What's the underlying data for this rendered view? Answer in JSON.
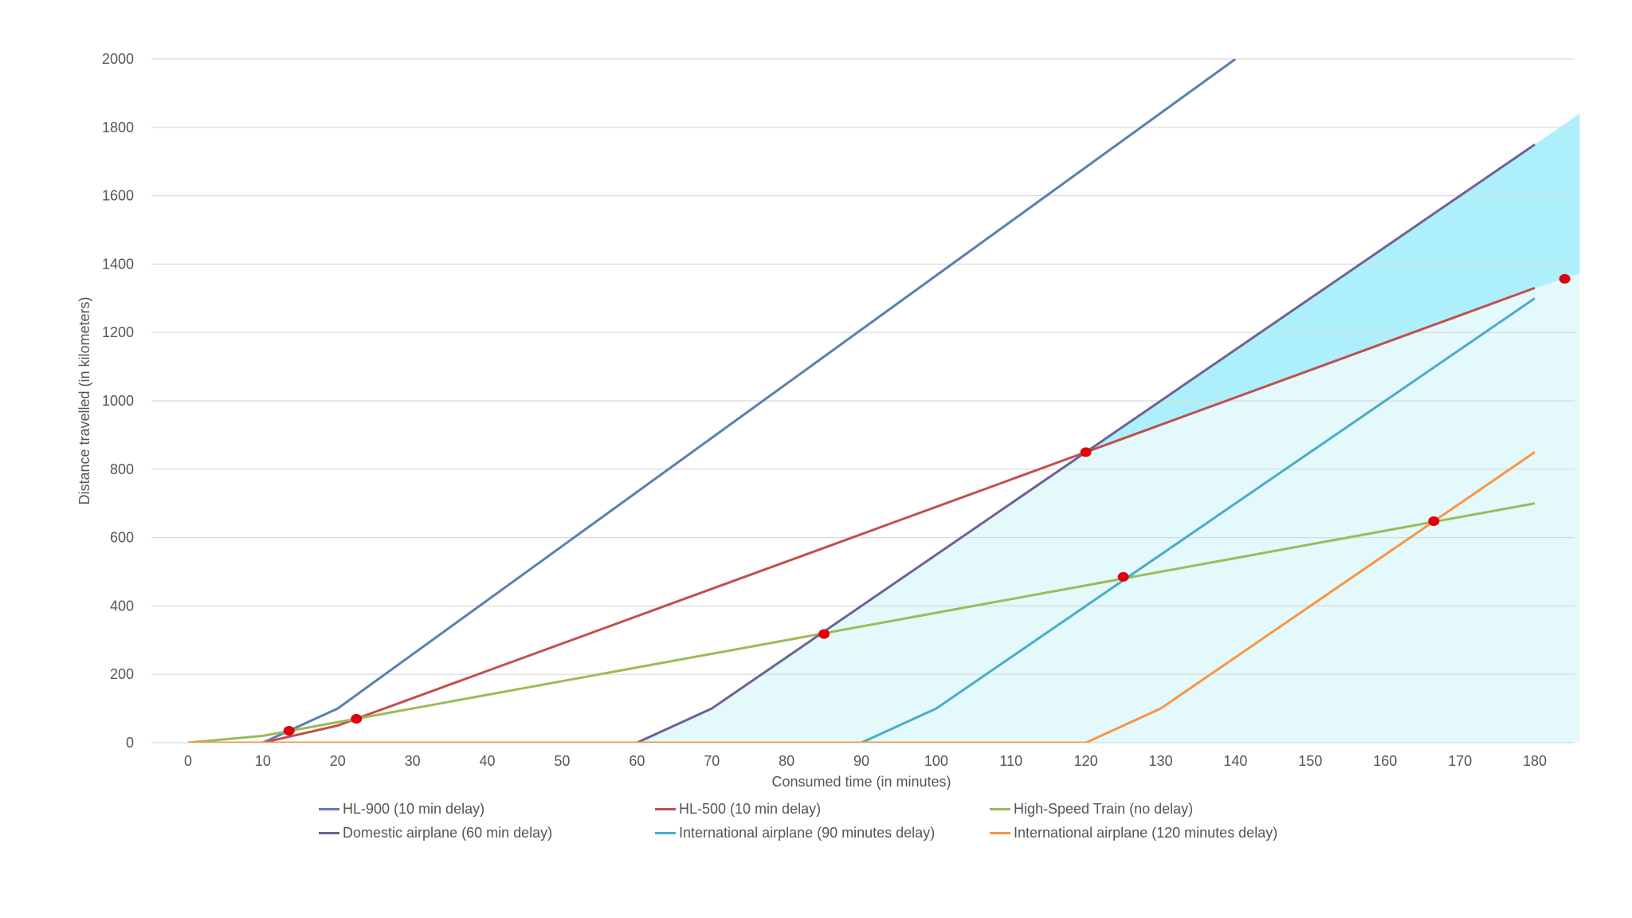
{
  "chart_data": {
    "type": "line",
    "title": "",
    "xlabel": "Consumed time (in minutes)",
    "ylabel": "Distance travelled (in kilometers)",
    "xlim": [
      0,
      180
    ],
    "ylim": [
      0,
      2000
    ],
    "x_ticks": [
      0,
      10,
      20,
      30,
      40,
      50,
      60,
      70,
      80,
      90,
      100,
      110,
      120,
      130,
      140,
      150,
      160,
      170,
      180
    ],
    "y_ticks": [
      0,
      200,
      400,
      600,
      800,
      1000,
      1200,
      1400,
      1600,
      1800,
      2000
    ],
    "grid": "horizontal",
    "legend_position": "bottom",
    "series": [
      {
        "name": "HL-900 (10 min delay)",
        "color": "#5a7fb0",
        "points": [
          [
            0,
            0
          ],
          [
            10,
            0
          ],
          [
            20,
            100
          ],
          [
            140,
            2000
          ]
        ]
      },
      {
        "name": "HL-500 (10 min delay)",
        "color": "#c0504d",
        "points": [
          [
            0,
            0
          ],
          [
            10,
            0
          ],
          [
            20,
            50
          ],
          [
            120,
            850
          ],
          [
            180,
            1330
          ]
        ]
      },
      {
        "name": "High-Speed Train (no delay)",
        "color": "#9bbb59",
        "points": [
          [
            0,
            0
          ],
          [
            10,
            20
          ],
          [
            180,
            700
          ]
        ]
      },
      {
        "name": "Domestic airplane (60 min delay)",
        "color": "#6e6294",
        "points": [
          [
            0,
            0
          ],
          [
            60,
            0
          ],
          [
            70,
            100
          ],
          [
            180,
            1750
          ]
        ]
      },
      {
        "name": "International airplane (90 minutes delay)",
        "color": "#4bacc6",
        "points": [
          [
            0,
            0
          ],
          [
            90,
            0
          ],
          [
            100,
            100
          ],
          [
            180,
            1300
          ]
        ]
      },
      {
        "name": "International airplane (120 minutes delay)",
        "color": "#f79646",
        "points": [
          [
            0,
            0
          ],
          [
            120,
            0
          ],
          [
            130,
            100
          ],
          [
            180,
            850
          ]
        ]
      }
    ],
    "intersections": [
      [
        13.5,
        35
      ],
      [
        22.5,
        70
      ],
      [
        85,
        318
      ],
      [
        120,
        850
      ],
      [
        125,
        485
      ],
      [
        166.5,
        648
      ],
      [
        184,
        1357
      ]
    ],
    "intersection_color": "#e0000b",
    "shaded_regions": [
      {
        "color": "#e3f9fc",
        "points": [
          [
            60,
            0
          ],
          [
            70,
            100
          ],
          [
            120,
            850
          ],
          [
            180,
            1330
          ],
          [
            186,
            1372
          ],
          [
            186,
            0
          ]
        ]
      },
      {
        "color": "#adf0fb",
        "points": [
          [
            120,
            850
          ],
          [
            180,
            1750
          ],
          [
            186,
            1840
          ],
          [
            186,
            1372
          ],
          [
            180,
            1330
          ]
        ]
      }
    ]
  }
}
